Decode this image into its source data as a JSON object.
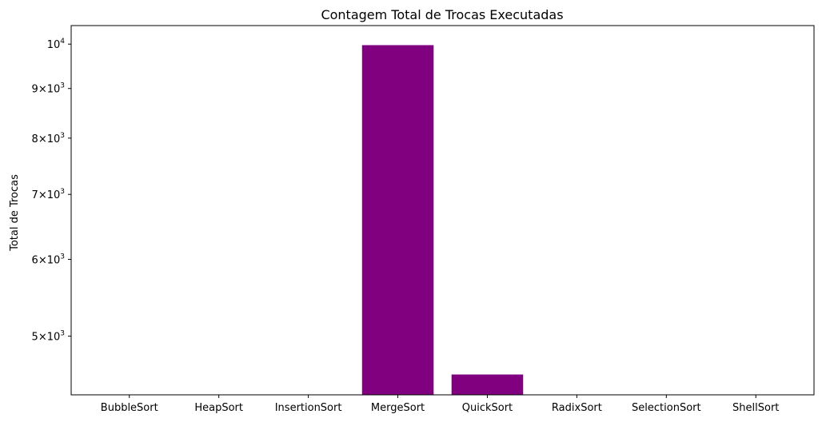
{
  "chart_data": {
    "type": "bar",
    "title": "Contagem Total de Trocas Executadas",
    "xlabel": "",
    "ylabel": "Total de Trocas",
    "yscale": "log",
    "ylim": [
      4350,
      10450
    ],
    "categories": [
      "BubbleSort",
      "HeapSort",
      "InsertionSort",
      "MergeSort",
      "QuickSort",
      "RadixSort",
      "SelectionSort",
      "ShellSort"
    ],
    "values": [
      null,
      null,
      null,
      9976,
      4565,
      null,
      null,
      null
    ],
    "yticks": [
      {
        "value": 5000,
        "mantissa": "5",
        "base": "10",
        "exp": "3"
      },
      {
        "value": 6000,
        "mantissa": "6",
        "base": "10",
        "exp": "3"
      },
      {
        "value": 7000,
        "mantissa": "7",
        "base": "10",
        "exp": "3"
      },
      {
        "value": 8000,
        "mantissa": "8",
        "base": "10",
        "exp": "3"
      },
      {
        "value": 9000,
        "mantissa": "9",
        "base": "10",
        "exp": "3"
      },
      {
        "value": 10000,
        "mantissa": "",
        "base": "10",
        "exp": "4"
      }
    ],
    "grid": false,
    "colors": {
      "bar": "#800080",
      "axis": "#000000",
      "background": "#ffffff"
    }
  }
}
